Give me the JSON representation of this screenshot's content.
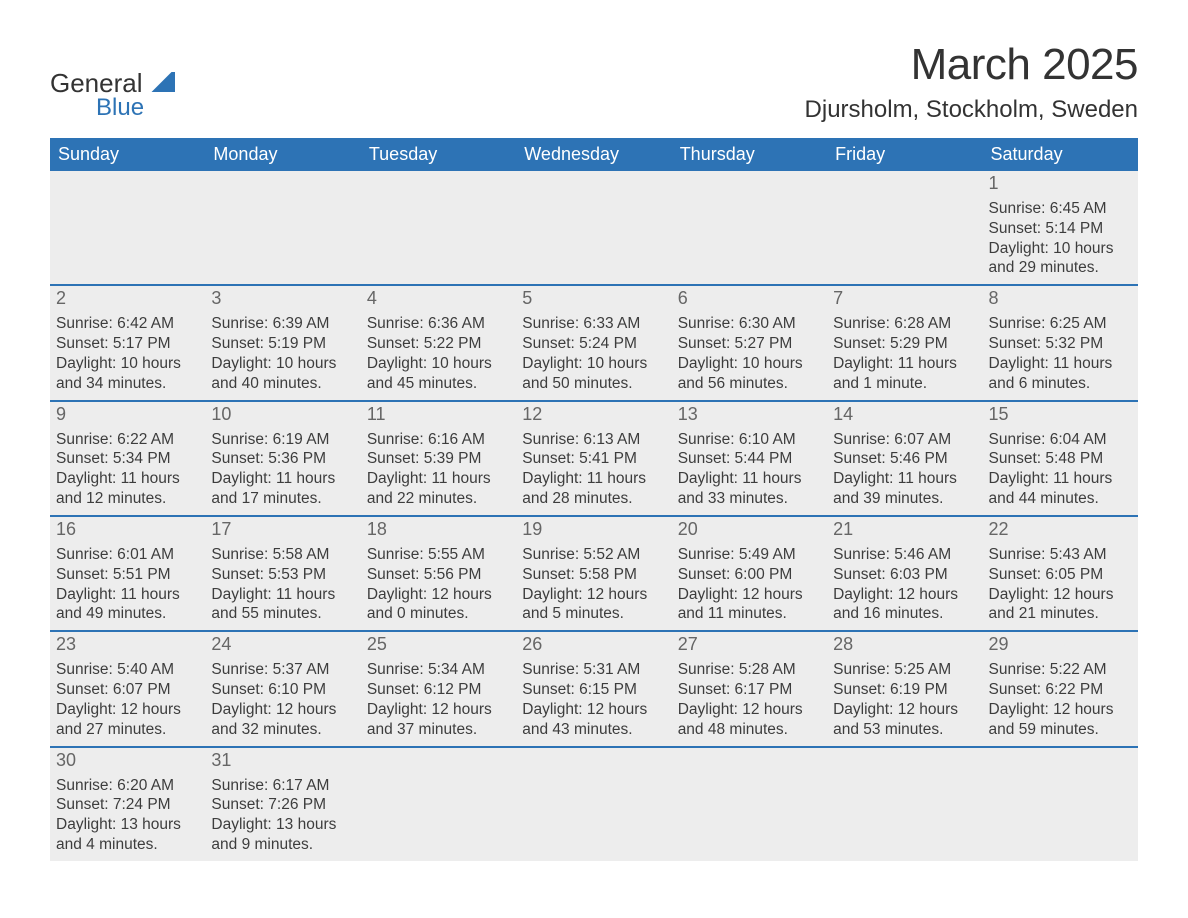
{
  "logo": {
    "word1": "General",
    "word2": "Blue"
  },
  "title": {
    "month": "March 2025",
    "location": "Djursholm, Stockholm, Sweden"
  },
  "weekdays": [
    "Sunday",
    "Monday",
    "Tuesday",
    "Wednesday",
    "Thursday",
    "Friday",
    "Saturday"
  ],
  "colors": {
    "header_bg": "#2d73b5",
    "header_text": "#ffffff",
    "daynum_bg": "#ededed",
    "daynum_text": "#666666",
    "body_text": "#3d3d3d",
    "border": "#2d73b5",
    "page_bg": "#ffffff"
  },
  "weeks": [
    [
      {
        "n": "",
        "sr": "",
        "ss": "",
        "dl": ""
      },
      {
        "n": "",
        "sr": "",
        "ss": "",
        "dl": ""
      },
      {
        "n": "",
        "sr": "",
        "ss": "",
        "dl": ""
      },
      {
        "n": "",
        "sr": "",
        "ss": "",
        "dl": ""
      },
      {
        "n": "",
        "sr": "",
        "ss": "",
        "dl": ""
      },
      {
        "n": "",
        "sr": "",
        "ss": "",
        "dl": ""
      },
      {
        "n": "1",
        "sr": "Sunrise: 6:45 AM",
        "ss": "Sunset: 5:14 PM",
        "dl": "Daylight: 10 hours and 29 minutes."
      }
    ],
    [
      {
        "n": "2",
        "sr": "Sunrise: 6:42 AM",
        "ss": "Sunset: 5:17 PM",
        "dl": "Daylight: 10 hours and 34 minutes."
      },
      {
        "n": "3",
        "sr": "Sunrise: 6:39 AM",
        "ss": "Sunset: 5:19 PM",
        "dl": "Daylight: 10 hours and 40 minutes."
      },
      {
        "n": "4",
        "sr": "Sunrise: 6:36 AM",
        "ss": "Sunset: 5:22 PM",
        "dl": "Daylight: 10 hours and 45 minutes."
      },
      {
        "n": "5",
        "sr": "Sunrise: 6:33 AM",
        "ss": "Sunset: 5:24 PM",
        "dl": "Daylight: 10 hours and 50 minutes."
      },
      {
        "n": "6",
        "sr": "Sunrise: 6:30 AM",
        "ss": "Sunset: 5:27 PM",
        "dl": "Daylight: 10 hours and 56 minutes."
      },
      {
        "n": "7",
        "sr": "Sunrise: 6:28 AM",
        "ss": "Sunset: 5:29 PM",
        "dl": "Daylight: 11 hours and 1 minute."
      },
      {
        "n": "8",
        "sr": "Sunrise: 6:25 AM",
        "ss": "Sunset: 5:32 PM",
        "dl": "Daylight: 11 hours and 6 minutes."
      }
    ],
    [
      {
        "n": "9",
        "sr": "Sunrise: 6:22 AM",
        "ss": "Sunset: 5:34 PM",
        "dl": "Daylight: 11 hours and 12 minutes."
      },
      {
        "n": "10",
        "sr": "Sunrise: 6:19 AM",
        "ss": "Sunset: 5:36 PM",
        "dl": "Daylight: 11 hours and 17 minutes."
      },
      {
        "n": "11",
        "sr": "Sunrise: 6:16 AM",
        "ss": "Sunset: 5:39 PM",
        "dl": "Daylight: 11 hours and 22 minutes."
      },
      {
        "n": "12",
        "sr": "Sunrise: 6:13 AM",
        "ss": "Sunset: 5:41 PM",
        "dl": "Daylight: 11 hours and 28 minutes."
      },
      {
        "n": "13",
        "sr": "Sunrise: 6:10 AM",
        "ss": "Sunset: 5:44 PM",
        "dl": "Daylight: 11 hours and 33 minutes."
      },
      {
        "n": "14",
        "sr": "Sunrise: 6:07 AM",
        "ss": "Sunset: 5:46 PM",
        "dl": "Daylight: 11 hours and 39 minutes."
      },
      {
        "n": "15",
        "sr": "Sunrise: 6:04 AM",
        "ss": "Sunset: 5:48 PM",
        "dl": "Daylight: 11 hours and 44 minutes."
      }
    ],
    [
      {
        "n": "16",
        "sr": "Sunrise: 6:01 AM",
        "ss": "Sunset: 5:51 PM",
        "dl": "Daylight: 11 hours and 49 minutes."
      },
      {
        "n": "17",
        "sr": "Sunrise: 5:58 AM",
        "ss": "Sunset: 5:53 PM",
        "dl": "Daylight: 11 hours and 55 minutes."
      },
      {
        "n": "18",
        "sr": "Sunrise: 5:55 AM",
        "ss": "Sunset: 5:56 PM",
        "dl": "Daylight: 12 hours and 0 minutes."
      },
      {
        "n": "19",
        "sr": "Sunrise: 5:52 AM",
        "ss": "Sunset: 5:58 PM",
        "dl": "Daylight: 12 hours and 5 minutes."
      },
      {
        "n": "20",
        "sr": "Sunrise: 5:49 AM",
        "ss": "Sunset: 6:00 PM",
        "dl": "Daylight: 12 hours and 11 minutes."
      },
      {
        "n": "21",
        "sr": "Sunrise: 5:46 AM",
        "ss": "Sunset: 6:03 PM",
        "dl": "Daylight: 12 hours and 16 minutes."
      },
      {
        "n": "22",
        "sr": "Sunrise: 5:43 AM",
        "ss": "Sunset: 6:05 PM",
        "dl": "Daylight: 12 hours and 21 minutes."
      }
    ],
    [
      {
        "n": "23",
        "sr": "Sunrise: 5:40 AM",
        "ss": "Sunset: 6:07 PM",
        "dl": "Daylight: 12 hours and 27 minutes."
      },
      {
        "n": "24",
        "sr": "Sunrise: 5:37 AM",
        "ss": "Sunset: 6:10 PM",
        "dl": "Daylight: 12 hours and 32 minutes."
      },
      {
        "n": "25",
        "sr": "Sunrise: 5:34 AM",
        "ss": "Sunset: 6:12 PM",
        "dl": "Daylight: 12 hours and 37 minutes."
      },
      {
        "n": "26",
        "sr": "Sunrise: 5:31 AM",
        "ss": "Sunset: 6:15 PM",
        "dl": "Daylight: 12 hours and 43 minutes."
      },
      {
        "n": "27",
        "sr": "Sunrise: 5:28 AM",
        "ss": "Sunset: 6:17 PM",
        "dl": "Daylight: 12 hours and 48 minutes."
      },
      {
        "n": "28",
        "sr": "Sunrise: 5:25 AM",
        "ss": "Sunset: 6:19 PM",
        "dl": "Daylight: 12 hours and 53 minutes."
      },
      {
        "n": "29",
        "sr": "Sunrise: 5:22 AM",
        "ss": "Sunset: 6:22 PM",
        "dl": "Daylight: 12 hours and 59 minutes."
      }
    ],
    [
      {
        "n": "30",
        "sr": "Sunrise: 6:20 AM",
        "ss": "Sunset: 7:24 PM",
        "dl": "Daylight: 13 hours and 4 minutes."
      },
      {
        "n": "31",
        "sr": "Sunrise: 6:17 AM",
        "ss": "Sunset: 7:26 PM",
        "dl": "Daylight: 13 hours and 9 minutes."
      },
      {
        "n": "",
        "sr": "",
        "ss": "",
        "dl": ""
      },
      {
        "n": "",
        "sr": "",
        "ss": "",
        "dl": ""
      },
      {
        "n": "",
        "sr": "",
        "ss": "",
        "dl": ""
      },
      {
        "n": "",
        "sr": "",
        "ss": "",
        "dl": ""
      },
      {
        "n": "",
        "sr": "",
        "ss": "",
        "dl": ""
      }
    ]
  ]
}
